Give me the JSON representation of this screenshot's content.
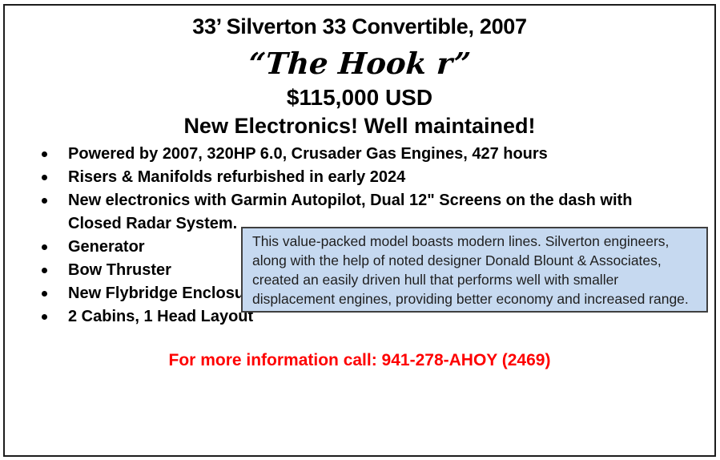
{
  "flyer": {
    "title": "33’ Silverton 33 Convertible, 2007",
    "boat_name": "“The Hook r”",
    "price": "$115,000 USD",
    "highlight": "New Electronics! Well maintained!",
    "features": [
      "Powered by 2007, 320HP 6.0, Crusader Gas Engines, 427 hours",
      "Risers & Manifolds refurbished in early 2024",
      "New electronics with Garmin Autopilot, Dual 12\" Screens on the dash with\nClosed Radar System.",
      "Generator",
      "Bow Thruster",
      "New Flybridge Enclosure",
      "2 Cabins, 1 Head Layout"
    ],
    "callout_text": "This value-packed model boasts modern lines. Silverton engineers,\nalong with the help of noted designer Donald Blount & Associates,\ncreated an easily driven hull that performs well with smaller\ndisplacement engines, providing better economy and increased range.",
    "contact": "For more information call: 941-278-AHOY (2469)"
  },
  "colors": {
    "callout_background": "#c6d9f0",
    "callout_border": "#3f3f3f",
    "contact_text": "#fe0000",
    "body_text": "#000000",
    "page_border": "#1c1c1c"
  }
}
